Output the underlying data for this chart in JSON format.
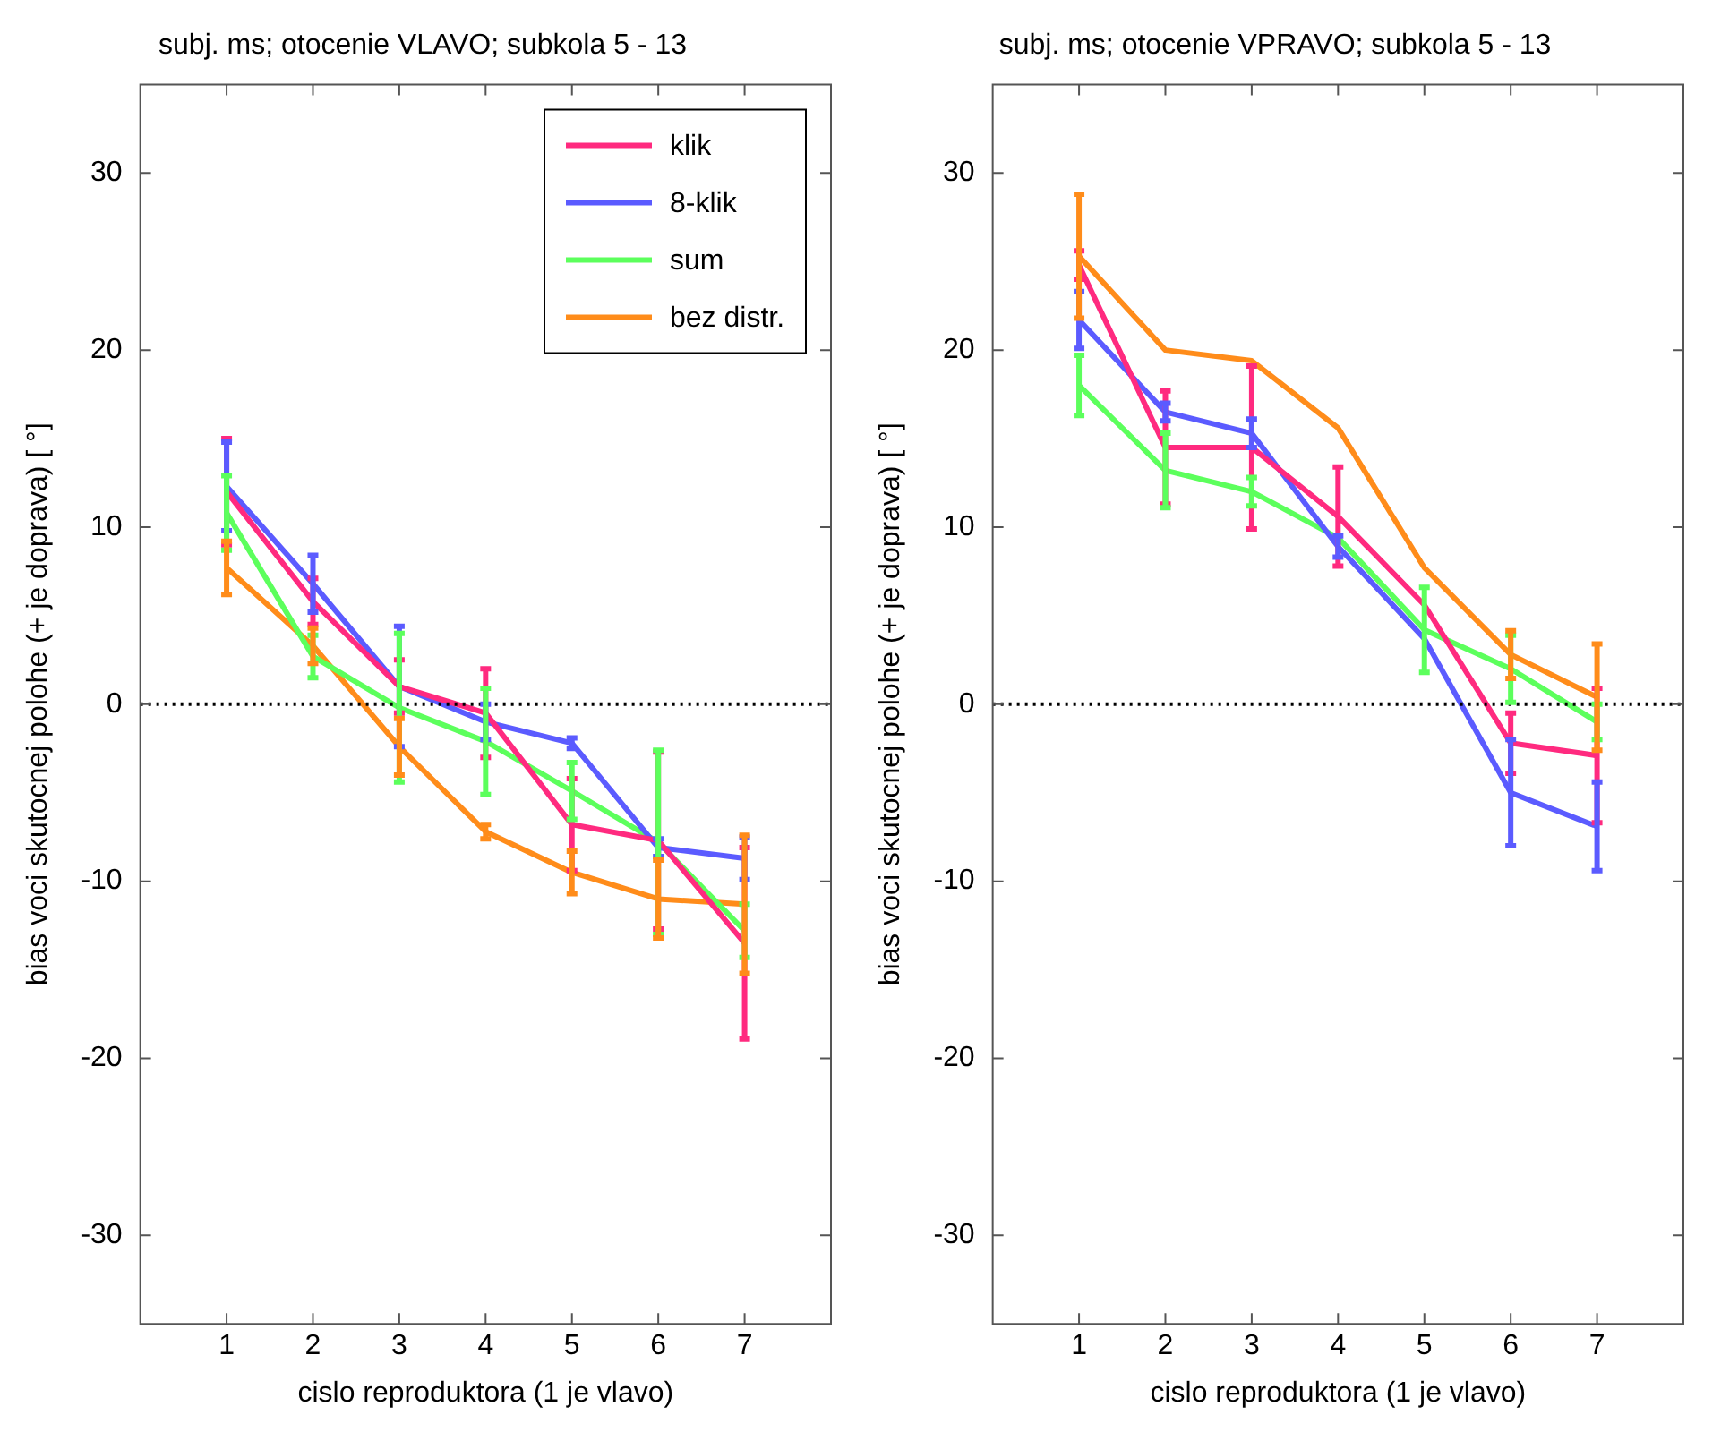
{
  "chart_data": [
    {
      "type": "line",
      "title": "subj. ms; otocenie VLAVO; subkola 5 - 13",
      "xlabel": "cislo reproduktora (1 je vlavo)",
      "ylabel": "bias voci skutocnej polohe (+ je doprava) [ °]",
      "x": [
        1,
        2,
        3,
        4,
        5,
        6,
        7
      ],
      "xlim": [
        0,
        8
      ],
      "xticks": [
        1,
        2,
        3,
        4,
        5,
        6,
        7
      ],
      "ylim": [
        -35,
        35
      ],
      "yticks": [
        -30,
        -20,
        -10,
        0,
        10,
        20,
        30
      ],
      "grid": false,
      "legend": "top right",
      "marker": "none",
      "line_style": "solid",
      "ref_lines": [
        {
          "axis": "y",
          "value": 0,
          "color": "#000000",
          "line_style": "dotted"
        }
      ],
      "series": [
        {
          "name": "klik",
          "color": "#ff2a7f",
          "values": [
            12,
            5.8,
            1,
            -0.5,
            -6.8,
            -7.7,
            -13.5
          ],
          "errors": [
            3,
            1.3,
            1.5,
            2.5,
            2.6,
            5,
            5.4
          ]
        },
        {
          "name": "8-klik",
          "color": "#5b5bff",
          "values": [
            12.3,
            6.8,
            1,
            -1,
            -2.2,
            -8.1,
            -8.7
          ],
          "errors": [
            2.5,
            1.6,
            3.4,
            1,
            0.3,
            0.5,
            1.2
          ]
        },
        {
          "name": "sum",
          "color": "#5cff5c",
          "values": [
            10.8,
            2.7,
            -0.2,
            -2.1,
            -4.9,
            -7.8,
            -12.8
          ],
          "errors": [
            2.1,
            1.2,
            4.2,
            3,
            1.6,
            5.2,
            1.5
          ]
        },
        {
          "name": "bez distr.",
          "color": "#ff8c1a",
          "values": [
            7.7,
            3.3,
            -2.4,
            -7.2,
            -9.5,
            -11,
            -11.3
          ],
          "errors": [
            1.5,
            1,
            1.6,
            0.4,
            1.2,
            2.2,
            3.9
          ]
        }
      ]
    },
    {
      "type": "line",
      "title": "subj. ms; otocenie VPRAVO; subkola 5 - 13",
      "xlabel": "cislo reproduktora (1 je vlavo)",
      "ylabel": "bias voci skutocnej polohe (+ je doprava) [ °]",
      "x": [
        1,
        2,
        3,
        4,
        5,
        6,
        7
      ],
      "xlim": [
        0,
        8
      ],
      "xticks": [
        1,
        2,
        3,
        4,
        5,
        6,
        7
      ],
      "ylim": [
        -35,
        35
      ],
      "yticks": [
        -30,
        -20,
        -10,
        0,
        10,
        20,
        30
      ],
      "grid": false,
      "legend": false,
      "marker": "none",
      "line_style": "solid",
      "ref_lines": [
        {
          "axis": "y",
          "value": 0,
          "color": "#000000",
          "line_style": "dotted"
        }
      ],
      "series": [
        {
          "color": "#ff2a7f",
          "values": [
            24.8,
            14.5,
            14.5,
            10.6,
            5.6,
            -2.2,
            -2.9
          ],
          "errors": [
            0.8,
            3.2,
            4.6,
            2.8,
            null,
            1.7,
            3.8
          ]
        },
        {
          "color": "#5b5bff",
          "values": [
            21.7,
            16.5,
            15.3,
            8.9,
            3.7,
            -5,
            -6.9
          ],
          "errors": [
            1.6,
            0.5,
            0.8,
            0.6,
            null,
            3,
            2.5
          ]
        },
        {
          "color": "#5cff5c",
          "values": [
            18,
            13.2,
            12,
            9.4,
            4.2,
            2,
            -1
          ],
          "errors": [
            1.7,
            2.1,
            0.8,
            null,
            2.4,
            1.9,
            1
          ]
        },
        {
          "color": "#ff8c1a",
          "values": [
            25.3,
            20,
            19.4,
            15.6,
            7.7,
            2.8,
            0.4
          ],
          "errors": [
            3.5,
            null,
            null,
            null,
            null,
            1.35,
            3
          ]
        }
      ]
    }
  ]
}
